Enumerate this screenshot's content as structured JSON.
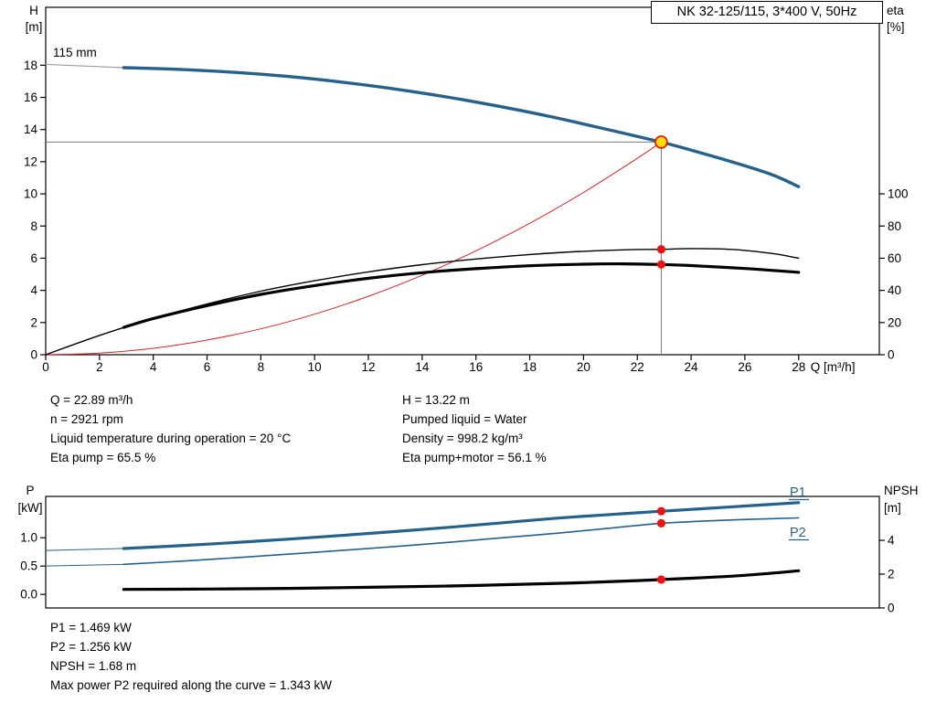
{
  "colors": {
    "curve_blue": "#24618d",
    "curve_black": "#000000",
    "system_red": "#dd2222",
    "marker_red": "#ee1111",
    "duty_yellow": "#ffdf00",
    "crosshair_gray": "#7a7a7a",
    "lead_gray": "#9a9a9a"
  },
  "info_top": {
    "left": [
      "Q = 22.89 m³/h",
      "n = 2921 rpm",
      "Liquid temperature during operation = 20 °C",
      "Eta pump = 65.5 %"
    ],
    "right": [
      "H = 13.22 m",
      "Pumped liquid = Water",
      "Density = 998.2 kg/m³",
      "Eta pump+motor = 56.1 %"
    ]
  },
  "info_bottom": [
    "P1 = 1.469 kW",
    "P2 = 1.256 kW",
    "NPSH = 1.68 m",
    "Max power P2 required along the curve = 1.343 kW"
  ],
  "chart_data": [
    {
      "id": "qh-eta-chart",
      "type": "line",
      "title": "NK 32-125/115, 3*400 V, 50Hz",
      "annotation": "115 mm",
      "x_axis": {
        "label": "Q [m³/h]",
        "min": 0,
        "max": 31,
        "ticks": [
          0,
          2,
          4,
          6,
          8,
          10,
          12,
          14,
          16,
          18,
          20,
          22,
          24,
          26,
          28
        ]
      },
      "y_left": {
        "name": "H",
        "unit": "[m]",
        "min": 0,
        "max": 21.6,
        "ticks": [
          0,
          2,
          4,
          6,
          8,
          10,
          12,
          14,
          16,
          18
        ]
      },
      "y_right": {
        "name": "eta",
        "unit": "[%]",
        "min": 0,
        "max": 216,
        "ticks": [
          0,
          20,
          40,
          60,
          80,
          100
        ]
      },
      "duty_point": {
        "q": 22.89,
        "h": 13.22
      },
      "series": [
        {
          "name": "head-curve-lead",
          "axis": "left",
          "color": "#9a9a9a",
          "width": 1.2,
          "points": [
            [
              0,
              18.05
            ],
            [
              2.9,
              17.85
            ]
          ]
        },
        {
          "name": "head-curve",
          "axis": "left",
          "color": "#24618d",
          "width": 3.4,
          "points": [
            [
              2.9,
              17.85
            ],
            [
              5,
              17.74
            ],
            [
              7,
              17.56
            ],
            [
              9,
              17.3
            ],
            [
              11,
              16.95
            ],
            [
              13,
              16.52
            ],
            [
              15,
              16.0
            ],
            [
              17,
              15.4
            ],
            [
              19,
              14.72
            ],
            [
              21,
              13.96
            ],
            [
              22.89,
              13.22
            ],
            [
              24,
              12.72
            ],
            [
              25.5,
              12.0
            ],
            [
              27,
              11.2
            ],
            [
              28,
              10.45
            ]
          ]
        },
        {
          "name": "system-curve",
          "axis": "left",
          "color": "#dd2222",
          "width": 1,
          "points": [
            [
              0,
              0
            ],
            [
              2,
              0.1
            ],
            [
              4,
              0.4
            ],
            [
              6,
              0.91
            ],
            [
              8,
              1.61
            ],
            [
              10,
              2.52
            ],
            [
              12,
              3.63
            ],
            [
              14,
              4.94
            ],
            [
              16,
              6.46
            ],
            [
              18,
              8.17
            ],
            [
              20,
              10.09
            ],
            [
              22,
              12.21
            ],
            [
              22.89,
              13.22
            ]
          ]
        },
        {
          "name": "eta-pump-curve",
          "axis": "right",
          "color": "#000000",
          "width": 1.4,
          "points": [
            [
              0,
              0
            ],
            [
              2,
              12
            ],
            [
              4,
              22.5
            ],
            [
              6,
              31.5
            ],
            [
              8,
              39.5
            ],
            [
              10,
              46
            ],
            [
              12,
              51.5
            ],
            [
              14,
              56
            ],
            [
              16,
              59.5
            ],
            [
              18,
              62.3
            ],
            [
              20,
              64.3
            ],
            [
              22,
              65.4
            ],
            [
              22.89,
              65.5
            ],
            [
              24,
              66
            ],
            [
              25.5,
              65.5
            ],
            [
              27,
              63
            ],
            [
              28,
              60
            ]
          ]
        },
        {
          "name": "eta-pump-motor-curve",
          "axis": "right",
          "color": "#000000",
          "width": 3.2,
          "points": [
            [
              2.9,
              17
            ],
            [
              4,
              22.5
            ],
            [
              6,
              30.5
            ],
            [
              8,
              37.5
            ],
            [
              10,
              43
            ],
            [
              12,
              47.5
            ],
            [
              14,
              51
            ],
            [
              16,
              53.5
            ],
            [
              18,
              55.3
            ],
            [
              20,
              56.3
            ],
            [
              21.5,
              56.5
            ],
            [
              22.89,
              56.1
            ],
            [
              24,
              55.4
            ],
            [
              26,
              53.6
            ],
            [
              28,
              51.2
            ]
          ]
        }
      ],
      "markers": [
        {
          "q": 22.89,
          "value": 13.22,
          "axis": "left",
          "style": "duty-point"
        },
        {
          "q": 22.89,
          "value": 65.5,
          "axis": "right",
          "style": "dot"
        },
        {
          "q": 22.89,
          "value": 56.1,
          "axis": "right",
          "style": "dot"
        }
      ]
    },
    {
      "id": "power-npsh-chart",
      "type": "line",
      "x_axis": {
        "min": 0,
        "max": 31
      },
      "y_left": {
        "name": "P",
        "unit": "[kW]",
        "min": -0.24,
        "max": 1.73,
        "ticks": [
          0,
          0.5,
          1
        ],
        "tick_labels": [
          "0.0",
          "0.5",
          "1.0"
        ]
      },
      "y_right": {
        "name": "NPSH",
        "unit": "[m]",
        "min": 0,
        "max": 6.6,
        "ticks": [
          0,
          2,
          4
        ],
        "tick_labels": [
          "0",
          "2",
          "4"
        ]
      },
      "series": [
        {
          "name": "p1-curve-lead",
          "axis": "left",
          "color": "#24618d",
          "width": 1,
          "points": [
            [
              0,
              0.775
            ],
            [
              2.9,
              0.81
            ]
          ]
        },
        {
          "name": "p2-curve-lead",
          "axis": "left",
          "color": "#24618d",
          "width": 1,
          "points": [
            [
              0,
              0.5
            ],
            [
              2.9,
              0.53
            ]
          ]
        },
        {
          "name": "p1-curve",
          "label": "P1",
          "axis": "left",
          "color": "#24618d",
          "width": 3.2,
          "points": [
            [
              2.9,
              0.81
            ],
            [
              5,
              0.86
            ],
            [
              7,
              0.915
            ],
            [
              9,
              0.975
            ],
            [
              11,
              1.04
            ],
            [
              13,
              1.11
            ],
            [
              15,
              1.185
            ],
            [
              17,
              1.265
            ],
            [
              19,
              1.345
            ],
            [
              21,
              1.41
            ],
            [
              22.89,
              1.469
            ],
            [
              24,
              1.5
            ],
            [
              26,
              1.56
            ],
            [
              28,
              1.62
            ]
          ]
        },
        {
          "name": "p2-curve",
          "label": "P2",
          "axis": "left",
          "color": "#24618d",
          "width": 1.6,
          "points": [
            [
              2.9,
              0.53
            ],
            [
              5,
              0.585
            ],
            [
              7,
              0.645
            ],
            [
              9,
              0.71
            ],
            [
              11,
              0.775
            ],
            [
              13,
              0.845
            ],
            [
              15,
              0.92
            ],
            [
              17,
              1.0
            ],
            [
              19,
              1.08
            ],
            [
              21,
              1.17
            ],
            [
              22.89,
              1.256
            ],
            [
              25,
              1.305
            ],
            [
              26.5,
              1.33
            ],
            [
              28,
              1.35
            ]
          ]
        },
        {
          "name": "npsh-curve",
          "axis": "right",
          "color": "#000000",
          "width": 3.2,
          "points": [
            [
              2.9,
              1.1
            ],
            [
              6,
              1.12
            ],
            [
              9,
              1.16
            ],
            [
              12,
              1.22
            ],
            [
              15,
              1.3
            ],
            [
              18,
              1.41
            ],
            [
              20,
              1.5
            ],
            [
              22,
              1.62
            ],
            [
              22.89,
              1.68
            ],
            [
              24,
              1.76
            ],
            [
              26,
              1.93
            ],
            [
              28,
              2.2
            ]
          ]
        }
      ],
      "markers": [
        {
          "q": 22.89,
          "value": 1.469,
          "axis": "left",
          "style": "dot"
        },
        {
          "q": 22.89,
          "value": 1.256,
          "axis": "left",
          "style": "dot"
        },
        {
          "q": 22.89,
          "value": 1.68,
          "axis": "right",
          "style": "dot"
        }
      ]
    }
  ]
}
